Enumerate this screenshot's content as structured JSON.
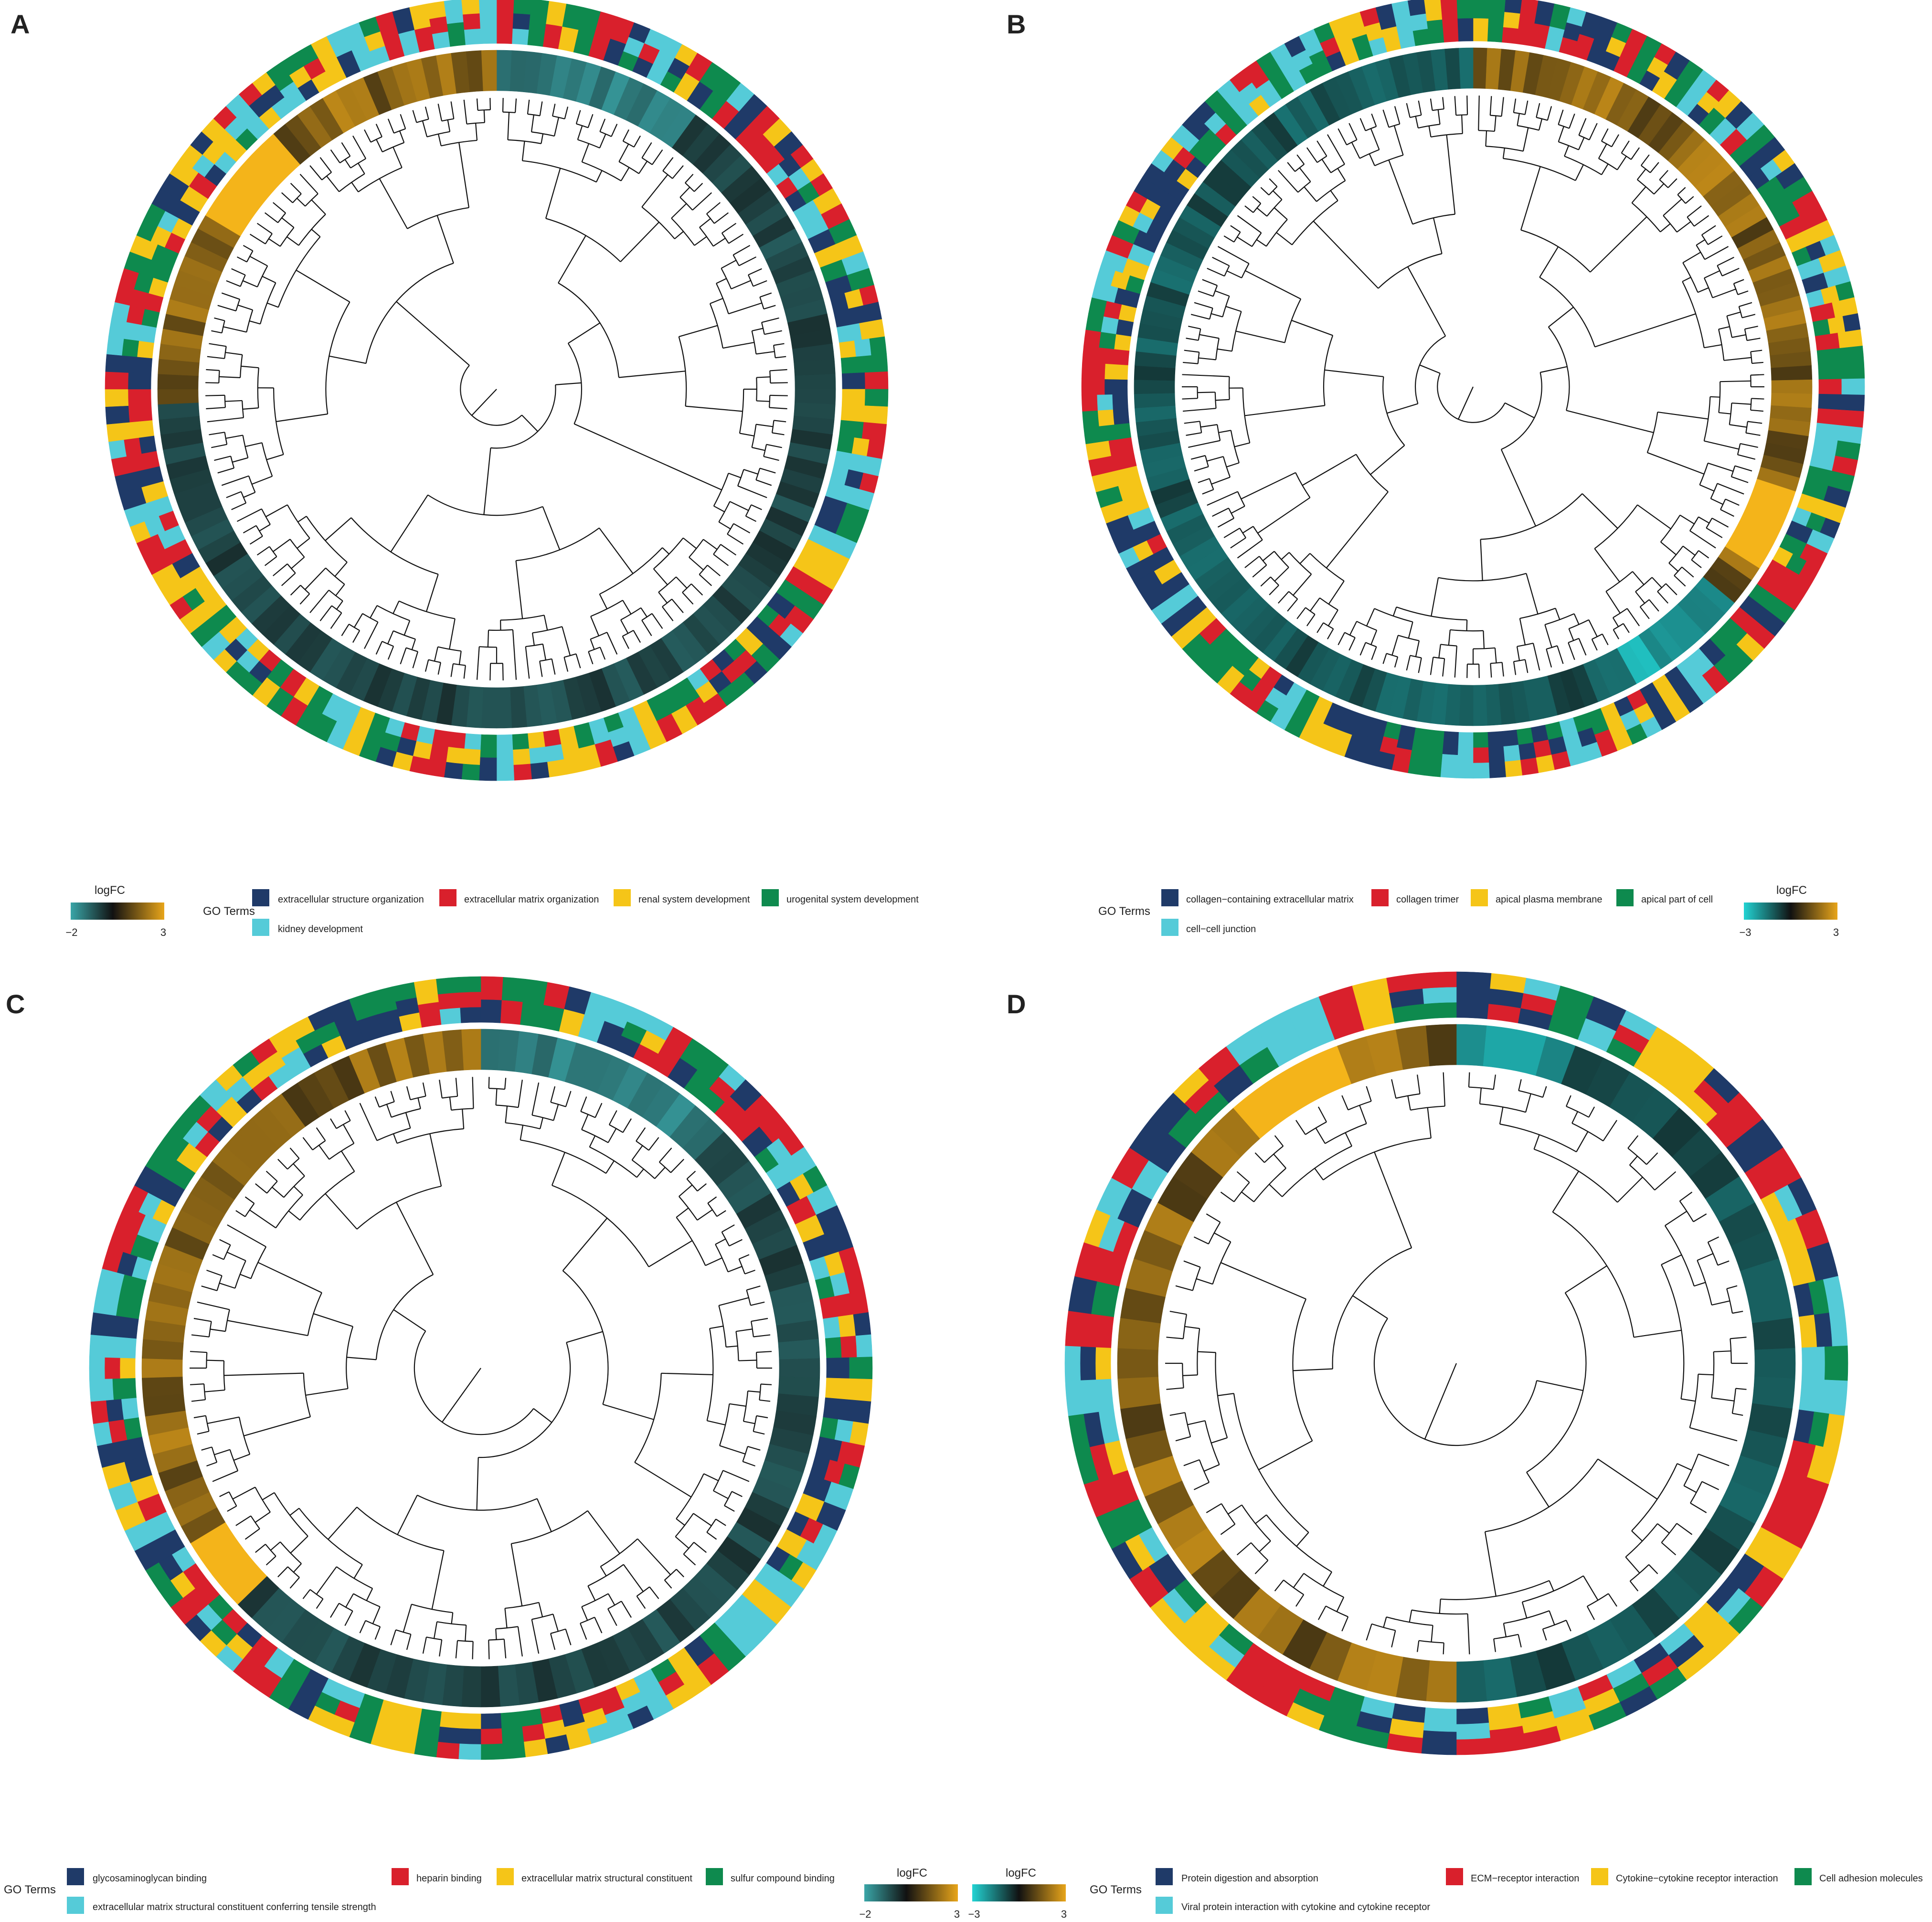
{
  "colors": {
    "go_terms": [
      "#1f3a68",
      "#d9202c",
      "#f5c518",
      "#0e8a4e",
      "#55cbd8"
    ],
    "logfc_low_A": "#3aa6a8",
    "logfc_low_B": "#22d4d4",
    "logfc_mid": "#111111",
    "logfc_high": "#e8a51a",
    "dendrogram": "#111111",
    "ring_separator": "#ffffff"
  },
  "chart_data": [
    {
      "panel": "A",
      "type": "circular-dendrogram-heatmap",
      "logfc_legend": {
        "title": "logFC",
        "min_label": "−2",
        "max_label": "3"
      },
      "go_terms_label": "GO Terms",
      "go_terms": [
        "extracellular structure organization",
        "extracellular matrix organization",
        "renal system development",
        "urogenital system development",
        "kidney development"
      ],
      "seed": 11,
      "n_genes": 140,
      "high_start": 0.74,
      "high_end": 1.0,
      "very_high": [
        0.83,
        0.88
      ],
      "low_span": [
        0.0,
        0.1
      ]
    },
    {
      "panel": "B",
      "type": "circular-dendrogram-heatmap",
      "logfc_legend": {
        "title": "logFC",
        "min_label": "−3",
        "max_label": "3"
      },
      "go_terms_label": "GO Terms",
      "go_terms": [
        "collagen−containing extracellular matrix",
        "collagen trimer",
        "apical plasma membrane",
        "apical part of cell",
        "cell−cell junction"
      ],
      "seed": 23,
      "n_genes": 150,
      "high_start": 0.0,
      "high_end": 0.4,
      "very_high": [
        0.3,
        0.34
      ],
      "low_span": [
        0.36,
        0.42
      ]
    },
    {
      "panel": "C",
      "type": "circular-dendrogram-heatmap",
      "logfc_legend": {
        "title": "logFC",
        "min_label": "−2",
        "max_label": "3"
      },
      "go_terms_label": "GO Terms",
      "go_terms": [
        "glycosaminoglycan binding",
        "heparin binding",
        "extracellular matrix structural constituent",
        "sulfur compound binding",
        "extracellular matrix structural constituent conferring tensile strength"
      ],
      "seed": 37,
      "n_genes": 110,
      "high_start": 0.62,
      "high_end": 1.0,
      "very_high": [
        0.62,
        0.66
      ],
      "low_span": [
        0.0,
        0.12
      ]
    },
    {
      "panel": "D",
      "type": "circular-dendrogram-heatmap",
      "logfc_legend": {
        "title": "logFC",
        "min_label": "−3",
        "max_label": "3"
      },
      "go_terms_label": "GO Terms",
      "go_terms": [
        "Protein digestion and absorption",
        "ECM−receptor interaction",
        "Cytokine−cytokine receptor interaction",
        "Cell adhesion molecules",
        "Viral protein interaction with cytokine and cytokine receptor"
      ],
      "seed": 53,
      "n_genes": 70,
      "high_start": 0.5,
      "high_end": 1.0,
      "very_high": [
        0.88,
        0.93
      ],
      "low_span": [
        0.0,
        0.05
      ]
    }
  ]
}
